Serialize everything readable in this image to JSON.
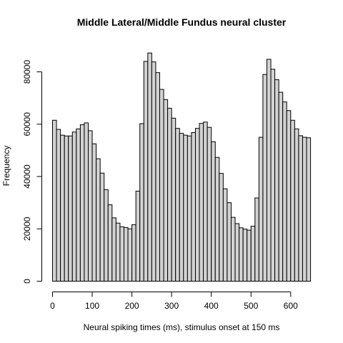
{
  "chart_data": {
    "type": "bar",
    "title": "Middle Lateral/Middle Fundus neural cluster",
    "xlabel": "Neural spiking times (ms), stimulus onset at 150 ms",
    "ylabel": "Frequency",
    "bin_width": 10,
    "bin_start": 0,
    "xlim": [
      0,
      650
    ],
    "ylim": [
      0,
      88000
    ],
    "x_ticks": [
      0,
      100,
      200,
      300,
      400,
      500,
      600
    ],
    "y_ticks": [
      0,
      20000,
      40000,
      60000,
      80000
    ],
    "values": [
      61500,
      58000,
      55800,
      55500,
      55500,
      57000,
      58200,
      59800,
      60500,
      57500,
      52500,
      46800,
      41300,
      35000,
      29200,
      24200,
      22200,
      20800,
      20500,
      20000,
      21600,
      34400,
      60200,
      84000,
      87200,
      83800,
      79700,
      73300,
      69400,
      66100,
      62300,
      58400,
      56500,
      55800,
      55500,
      56800,
      58400,
      60300,
      60800,
      58800,
      53300,
      47300,
      41200,
      35300,
      30000,
      24400,
      22000,
      20400,
      19900,
      19500,
      21000,
      31800,
      55000,
      79000,
      84800,
      81000,
      77000,
      72200,
      68500,
      65200,
      61500,
      58200,
      55600,
      55000,
      54800
    ],
    "bar_color": "#d3d3d3",
    "grid": false,
    "legend": "none"
  }
}
